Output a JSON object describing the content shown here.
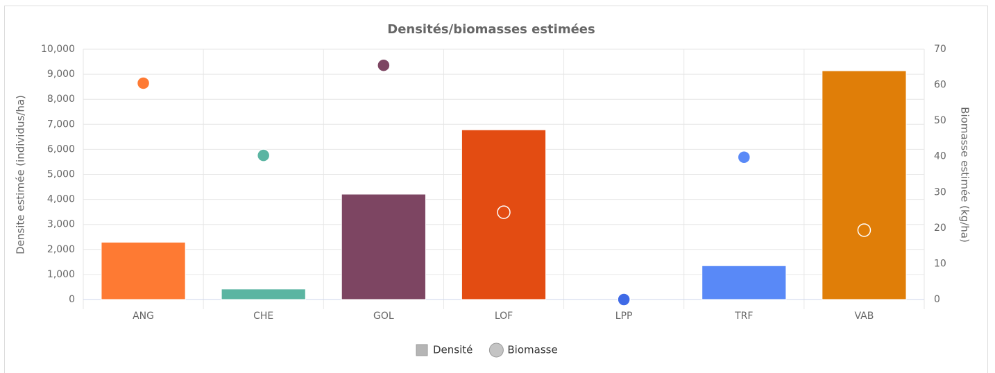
{
  "chart_data": {
    "type": "bar",
    "title": "Densités/biomasses estimées",
    "categories": [
      "ANG",
      "CHE",
      "GOL",
      "LOF",
      "LPP",
      "TRF",
      "VAB"
    ],
    "ylabel": "Densite estimée (individus/ha)",
    "y2label": "Biomasse estimée (kg/ha)",
    "ylim": [
      0,
      10000
    ],
    "yticks": [
      0,
      {
        "value": 1000,
        "label": "1,000"
      },
      {
        "value": 2000,
        "label": "2,000"
      },
      {
        "value": 3000,
        "label": "3,000"
      },
      {
        "value": 4000,
        "label": "4,000"
      },
      {
        "value": 5000,
        "label": "5,000"
      },
      {
        "value": 6000,
        "label": "6,000"
      },
      {
        "value": 7000,
        "label": "7,000"
      },
      {
        "value": 8000,
        "label": "8,000"
      },
      {
        "value": 9000,
        "label": "9,000"
      },
      {
        "value": 10000,
        "label": "10,000"
      }
    ],
    "y2lim": [
      0,
      70
    ],
    "y2ticks": [
      0,
      10,
      20,
      30,
      40,
      50,
      60,
      70
    ],
    "grid": true,
    "legend": "bottom",
    "series": [
      {
        "name": "Densité",
        "type": "bar",
        "color": "#b5b5b5",
        "colors": [
          "#fe7a33",
          "#5bb5a2",
          "#7d4562",
          "#e34c12",
          "#3f6ae6",
          "#5989f7",
          "#e07e08"
        ],
        "values": [
          2290,
          420,
          4210,
          6780,
          0,
          1350,
          9140
        ]
      },
      {
        "name": "Biomasse",
        "type": "scatter",
        "axis": "y2",
        "color": "#c4c4c4",
        "colors": [
          "#fe7a33",
          "#5bb5a2",
          "#7d4562",
          "#e34c12",
          "#3f6ae6",
          "#5989f7",
          "#e07e08"
        ],
        "values": [
          60.5,
          40.3,
          65.5,
          24.4,
          0,
          39.8,
          19.4
        ]
      }
    ]
  }
}
